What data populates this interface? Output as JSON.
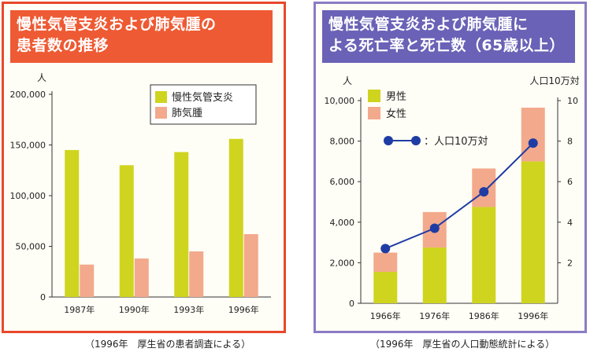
{
  "colors": {
    "copd": "#cfd41e",
    "lung_cancer": "#f3a98c",
    "rate_line": "#1f3ca4",
    "left_frame": "#e8472a",
    "left_title_bg": "#ee5a33",
    "right_frame": "#8b7bc4",
    "right_title_bg": "#6a62b6"
  },
  "left": {
    "title_line1": "慢性気管支炎および肺気腫の",
    "title_line2": "患者数の推移",
    "source": "（1996年　厚生省の患者調査による）"
  },
  "right": {
    "title_line1": "慢性気管支炎および肺気腫に",
    "title_line2": "よる死亡率と死亡数（65歳以上）",
    "source": "（1996年　厚生省の人口動態統計による）"
  },
  "chart_data": [
    {
      "type": "bar",
      "ylabel": "人",
      "ylim": [
        0,
        200000
      ],
      "yticks": [
        "0",
        "50,000",
        "100,000",
        "150,000",
        "200,000"
      ],
      "categories": [
        "1987年",
        "1990年",
        "1993年",
        "1996年"
      ],
      "legend_position": "top-right",
      "series": [
        {
          "name": "慢性気管支炎",
          "values": [
            145000,
            130000,
            143000,
            156000
          ]
        },
        {
          "name": "肺気腫",
          "values": [
            32000,
            38000,
            45000,
            62000
          ]
        }
      ]
    },
    {
      "type": "bar",
      "stacked": true,
      "ylabel": "人",
      "ylim": [
        0,
        10000
      ],
      "yticks": [
        "0",
        "2,000",
        "4,000",
        "6,000",
        "8,000",
        "10,000"
      ],
      "y2label": "人口10万対",
      "y2lim": [
        0,
        10
      ],
      "y2ticks": [
        "2",
        "4",
        "6",
        "8",
        "10"
      ],
      "categories": [
        "1966年",
        "1976年",
        "1986年",
        "1996年"
      ],
      "legend_position": "top-left",
      "series": [
        {
          "name": "男性",
          "values": [
            1550,
            2750,
            4750,
            7000
          ]
        },
        {
          "name": "女性",
          "values": [
            950,
            1750,
            1900,
            2650
          ]
        }
      ],
      "line_series": {
        "name": "人口10万対",
        "values": [
          2.7,
          3.7,
          5.5,
          7.9
        ]
      }
    }
  ]
}
